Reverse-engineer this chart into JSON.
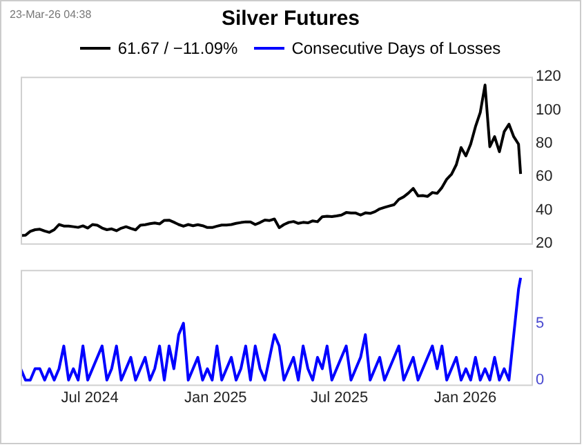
{
  "chart_data": [
    {
      "type": "line",
      "title": "Silver Futures",
      "annotations": [
        "23-Mar-26 04:38"
      ],
      "legend": "top",
      "tick_labels": "y",
      "x": [
        "2024-03-22",
        "2024-03-29",
        "2024-04-05",
        "2024-04-12",
        "2024-04-19",
        "2024-04-26",
        "2024-05-03",
        "2024-05-10",
        "2024-05-17",
        "2024-05-24",
        "2024-05-31",
        "2024-06-07",
        "2024-06-14",
        "2024-06-21",
        "2024-06-28",
        "2024-07-05",
        "2024-07-12",
        "2024-07-19",
        "2024-07-26",
        "2024-08-02",
        "2024-08-09",
        "2024-08-16",
        "2024-08-23",
        "2024-08-30",
        "2024-09-06",
        "2024-09-13",
        "2024-09-20",
        "2024-09-27",
        "2024-10-04",
        "2024-10-11",
        "2024-10-18",
        "2024-10-25",
        "2024-11-01",
        "2024-11-08",
        "2024-11-15",
        "2024-11-22",
        "2024-11-29",
        "2024-12-06",
        "2024-12-13",
        "2024-12-20",
        "2024-12-27",
        "2025-01-03",
        "2025-01-10",
        "2025-01-17",
        "2025-01-24",
        "2025-01-31",
        "2025-02-07",
        "2025-02-14",
        "2025-02-21",
        "2025-02-28",
        "2025-03-07",
        "2025-03-14",
        "2025-03-21",
        "2025-03-28",
        "2025-04-04",
        "2025-04-11",
        "2025-04-18",
        "2025-04-25",
        "2025-05-02",
        "2025-05-09",
        "2025-05-16",
        "2025-05-23",
        "2025-05-30",
        "2025-06-06",
        "2025-06-13",
        "2025-06-20",
        "2025-06-27",
        "2025-07-04",
        "2025-07-11",
        "2025-07-18",
        "2025-07-25",
        "2025-08-01",
        "2025-08-08",
        "2025-08-15",
        "2025-08-22",
        "2025-08-29",
        "2025-09-05",
        "2025-09-12",
        "2025-09-19",
        "2025-09-26",
        "2025-10-03",
        "2025-10-10",
        "2025-10-17",
        "2025-10-24",
        "2025-10-31",
        "2025-11-07",
        "2025-11-14",
        "2025-11-21",
        "2025-11-28",
        "2025-12-05",
        "2025-12-12",
        "2025-12-19",
        "2025-12-26",
        "2026-01-02",
        "2026-01-09",
        "2026-01-16",
        "2026-01-23",
        "2026-01-30",
        "2026-02-06",
        "2026-02-13",
        "2026-02-20",
        "2026-02-27",
        "2026-03-06",
        "2026-03-13",
        "2026-03-20",
        "2026-03-23"
      ],
      "series": [
        {
          "name": "61.67 / −11.09%",
          "color": "#000000",
          "values": [
            24.7,
            24.9,
            27.2,
            28.2,
            28.5,
            27.4,
            26.6,
            28.2,
            31.3,
            30.4,
            30.4,
            30.0,
            29.6,
            30.5,
            29.2,
            31.3,
            30.9,
            29.2,
            28.2,
            28.7,
            27.6,
            29.1,
            30.0,
            29.0,
            28.1,
            30.9,
            31.2,
            31.8,
            32.2,
            31.7,
            33.8,
            33.9,
            32.7,
            31.3,
            30.3,
            31.3,
            30.6,
            31.2,
            30.6,
            29.5,
            29.5,
            30.3,
            31.0,
            31.0,
            31.3,
            32.0,
            32.5,
            32.9,
            32.9,
            31.3,
            32.5,
            34.0,
            33.7,
            34.6,
            29.4,
            31.3,
            32.6,
            33.1,
            32.0,
            32.6,
            32.3,
            33.5,
            33.0,
            36.0,
            36.3,
            36.1,
            36.5,
            37.0,
            38.5,
            38.2,
            38.2,
            37.0,
            38.3,
            38.0,
            39.0,
            40.7,
            41.6,
            42.4,
            43.2,
            46.4,
            47.9,
            50.2,
            53.0,
            48.5,
            48.7,
            48.2,
            50.5,
            50.0,
            53.5,
            58.5,
            61.5,
            67.2,
            77.5,
            72.5,
            79.5,
            90.0,
            98.5,
            115.0,
            78.0,
            84.0,
            75.0,
            87.0,
            91.5,
            84.0,
            79.5,
            61.67
          ]
        }
      ],
      "xlim": [
        "2024-03-22",
        "2026-04-08"
      ],
      "ylim": [
        20,
        120
      ],
      "yticks": [
        20,
        40,
        60,
        80,
        100,
        120
      ]
    },
    {
      "type": "line",
      "legend": "top",
      "x": [
        "2024-03-22",
        "2024-03-29",
        "2024-04-05",
        "2024-04-12",
        "2024-04-19",
        "2024-04-26",
        "2024-05-03",
        "2024-05-10",
        "2024-05-17",
        "2024-05-24",
        "2024-05-31",
        "2024-06-07",
        "2024-06-14",
        "2024-06-21",
        "2024-06-28",
        "2024-07-05",
        "2024-07-12",
        "2024-07-19",
        "2024-07-26",
        "2024-08-02",
        "2024-08-09",
        "2024-08-16",
        "2024-08-23",
        "2024-08-30",
        "2024-09-06",
        "2024-09-13",
        "2024-09-20",
        "2024-09-27",
        "2024-10-04",
        "2024-10-11",
        "2024-10-18",
        "2024-10-25",
        "2024-11-01",
        "2024-11-08",
        "2024-11-15",
        "2024-11-22",
        "2024-11-29",
        "2024-12-06",
        "2024-12-13",
        "2024-12-20",
        "2024-12-27",
        "2025-01-03",
        "2025-01-10",
        "2025-01-17",
        "2025-01-24",
        "2025-01-31",
        "2025-02-07",
        "2025-02-14",
        "2025-02-21",
        "2025-02-28",
        "2025-03-07",
        "2025-03-14",
        "2025-03-21",
        "2025-03-28",
        "2025-04-04",
        "2025-04-11",
        "2025-04-18",
        "2025-04-25",
        "2025-05-02",
        "2025-05-09",
        "2025-05-16",
        "2025-05-23",
        "2025-05-30",
        "2025-06-06",
        "2025-06-13",
        "2025-06-20",
        "2025-06-27",
        "2025-07-04",
        "2025-07-11",
        "2025-07-18",
        "2025-07-25",
        "2025-08-01",
        "2025-08-08",
        "2025-08-15",
        "2025-08-22",
        "2025-08-29",
        "2025-09-05",
        "2025-09-12",
        "2025-09-19",
        "2025-09-26",
        "2025-10-03",
        "2025-10-10",
        "2025-10-17",
        "2025-10-24",
        "2025-10-31",
        "2025-11-07",
        "2025-11-14",
        "2025-11-21",
        "2025-11-28",
        "2025-12-05",
        "2025-12-12",
        "2025-12-19",
        "2025-12-26",
        "2026-01-02",
        "2026-01-09",
        "2026-01-16",
        "2026-01-23",
        "2026-01-30",
        "2026-02-06",
        "2026-02-13",
        "2026-02-20",
        "2026-02-27",
        "2026-03-06",
        "2026-03-13",
        "2026-03-20",
        "2026-03-23"
      ],
      "series": [
        {
          "name": "Consecutive Days of Losses",
          "color": "#0000ff",
          "values": [
            1,
            0,
            0,
            1,
            1,
            0,
            1,
            0,
            1,
            3,
            0,
            1,
            0,
            3,
            0,
            1,
            2,
            3,
            0,
            1,
            3,
            0,
            1,
            2,
            0,
            1,
            2,
            0,
            1,
            3,
            0,
            3,
            1,
            4,
            5,
            0,
            1,
            2,
            0,
            1,
            0,
            3,
            0,
            1,
            2,
            0,
            1,
            3,
            0,
            3,
            1,
            0,
            2,
            4,
            3,
            0,
            1,
            2,
            0,
            3,
            1,
            0,
            2,
            1,
            3,
            0,
            1,
            2,
            3,
            0,
            1,
            2,
            4,
            0,
            1,
            2,
            0,
            1,
            2,
            3,
            0,
            1,
            2,
            0,
            1,
            2,
            3,
            1,
            3,
            0,
            1,
            2,
            0,
            1,
            0,
            2,
            0,
            1,
            0,
            2,
            0,
            1,
            0,
            4,
            8,
            9
          ]
        }
      ],
      "xlim": [
        "2024-03-22",
        "2026-04-08"
      ],
      "xticks": [
        {
          "value": "2024-07-01",
          "label": "Jul 2024"
        },
        {
          "value": "2025-01-01",
          "label": "Jan 2025"
        },
        {
          "value": "2025-07-01",
          "label": "Jul 2025"
        },
        {
          "value": "2026-01-01",
          "label": "Jan 2026"
        }
      ],
      "ylim": [
        -0.4,
        9.7
      ],
      "yticks": [
        0,
        5
      ]
    }
  ]
}
